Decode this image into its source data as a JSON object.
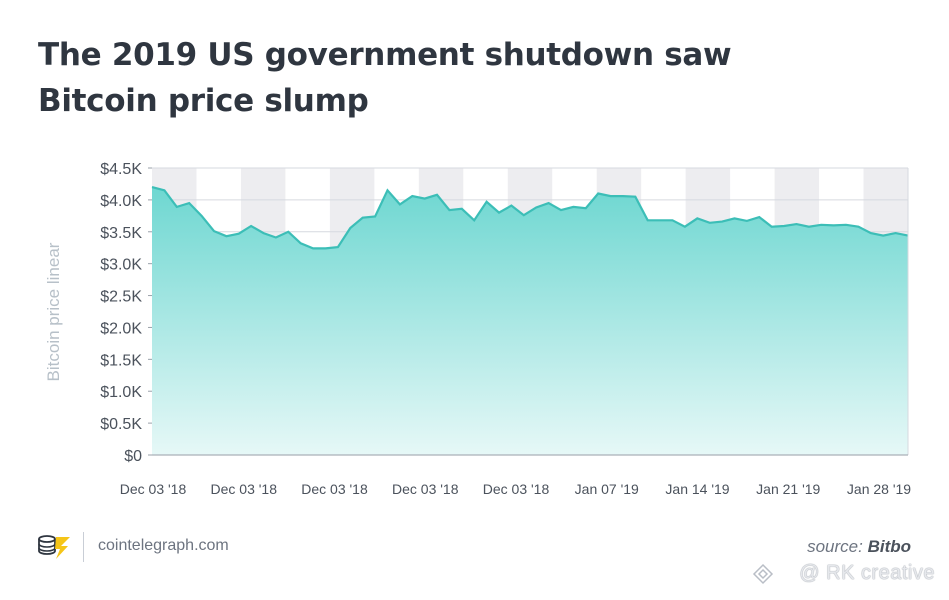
{
  "footer": {
    "site": "cointelegraph.com",
    "source_prefix": "source:",
    "source_name": "Bitbo"
  },
  "watermark": "@ RK creative",
  "colors": {
    "fill_top": "#6ed7d1",
    "fill_bottom": "#e6f8f7",
    "line": "#3cbeb7",
    "band": "#ededf0",
    "grid": "#d6d9df",
    "text": "#4b525c",
    "ylabel": "#b7c0c8"
  },
  "chart_data": {
    "type": "area",
    "title": "The 2019 US government shutdown saw Bitcoin price slump",
    "xlabel": "",
    "ylabel": "Bitcoin price linear",
    "ylim": [
      0,
      4500
    ],
    "yticks": [
      "$4.5K",
      "$4.0K",
      "$3.5K",
      "$3.0K",
      "$2.5K",
      "$2.0K",
      "$1.5K",
      "$1.0K",
      "$0.5K",
      "$0"
    ],
    "xticks": [
      "Dec 03 '18",
      "Dec 03 '18",
      "Dec 03 '18",
      "Dec 03 '18",
      "Dec 03 '18",
      "Jan 07 '19",
      "Jan 14 '19",
      "Jan 21 '19",
      "Jan 28 '19"
    ],
    "grid": true,
    "series": [
      {
        "values": [
          4200,
          4150,
          3890,
          3950,
          3750,
          3510,
          3430,
          3470,
          3590,
          3480,
          3410,
          3500,
          3320,
          3240,
          3240,
          3260,
          3560,
          3720,
          3740,
          4150,
          3930,
          4060,
          4020,
          4080,
          3840,
          3860,
          3680,
          3970,
          3800,
          3910,
          3760,
          3880,
          3950,
          3840,
          3890,
          3870,
          4100,
          4060,
          4060,
          4050,
          3680,
          3680,
          3680,
          3580,
          3710,
          3640,
          3660,
          3710,
          3670,
          3730,
          3580,
          3590,
          3620,
          3580,
          3610,
          3600,
          3610,
          3580,
          3480,
          3440,
          3480,
          3440
        ]
      }
    ]
  }
}
